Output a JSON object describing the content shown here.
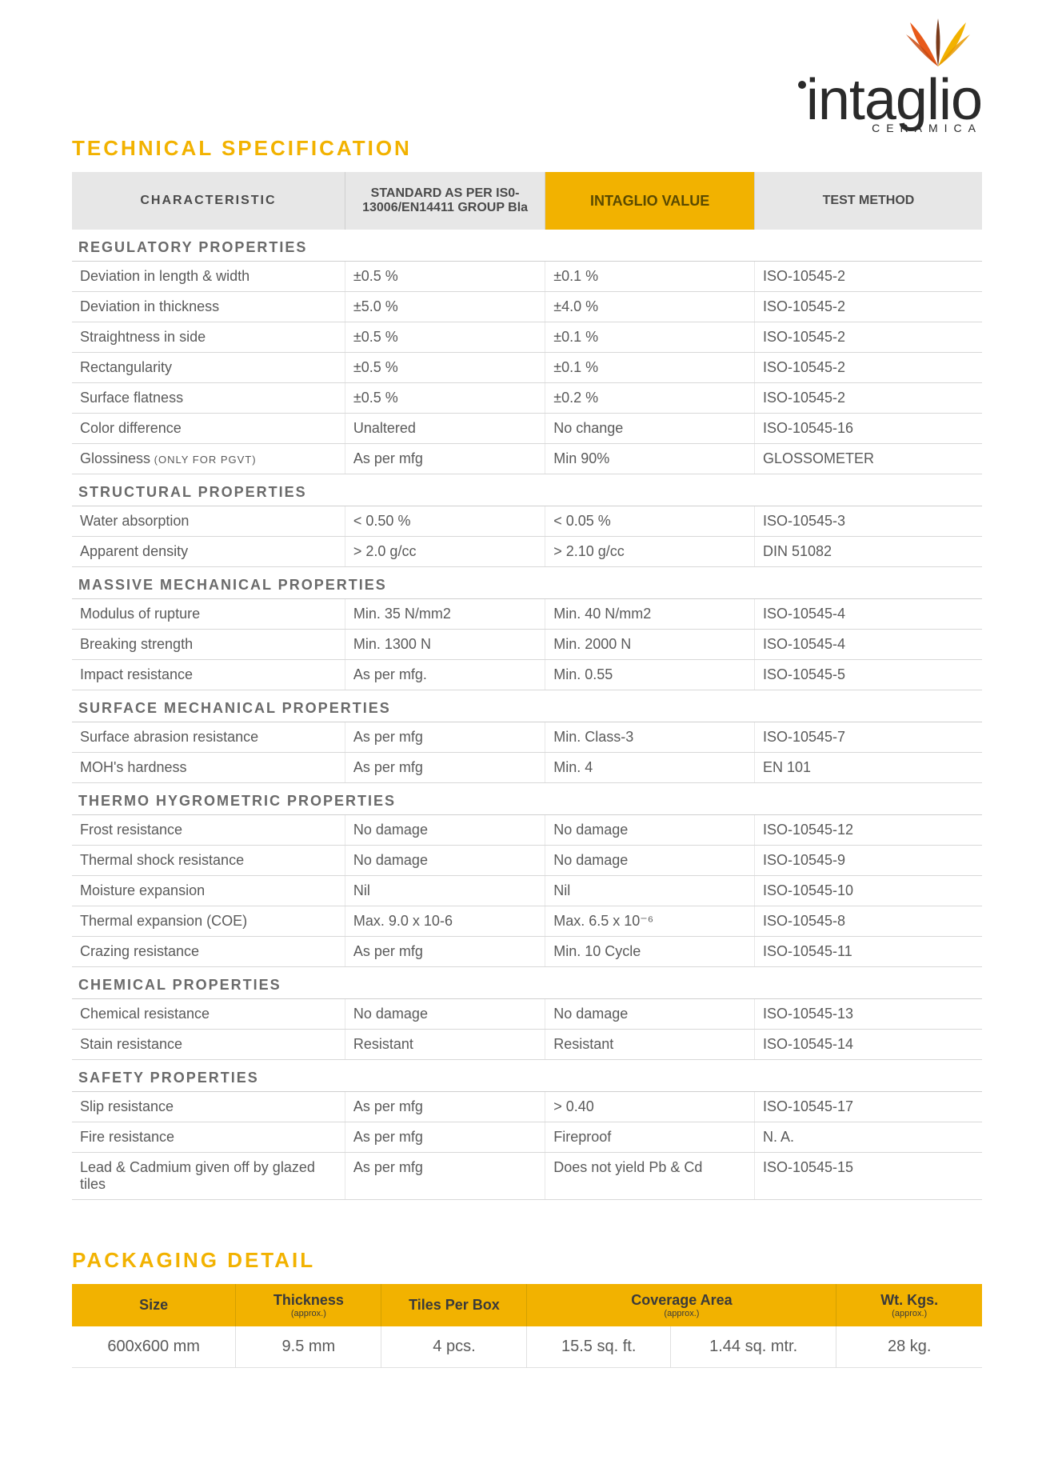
{
  "brand": {
    "name": "intaglio",
    "tagline": "CERAMICA",
    "icon_color_primary": "#e85a1a",
    "icon_color_secondary": "#f2b200",
    "text_color": "#2a2a2a"
  },
  "titles": {
    "technical": "TECHNICAL SPECIFICATION",
    "packaging": "PACKAGING DETAIL",
    "title_color": "#f2b200"
  },
  "tech_table": {
    "header_bg": "#e7e7e7",
    "highlight_bg": "#f2b200",
    "columns": [
      "CHARACTERISTIC",
      "STANDARD AS PER IS0-13006/EN14411 GROUP Bla",
      "INTAGLIO VALUE",
      "TEST METHOD"
    ],
    "groups": [
      {
        "name": "REGULATORY PROPERTIES",
        "rows": [
          {
            "char": "Deviation in length & width",
            "std": "±0.5 %",
            "val": "±0.1 %",
            "test": "ISO-10545-2"
          },
          {
            "char": "Deviation in thickness",
            "std": "±5.0 %",
            "val": "±4.0 %",
            "test": "ISO-10545-2"
          },
          {
            "char": "Straightness in side",
            "std": "±0.5 %",
            "val": "±0.1 %",
            "test": "ISO-10545-2"
          },
          {
            "char": "Rectangularity",
            "std": "±0.5 %",
            "val": "±0.1 %",
            "test": "ISO-10545-2"
          },
          {
            "char": "Surface flatness",
            "std": "±0.5 %",
            "val": "±0.2 %",
            "test": "ISO-10545-2"
          },
          {
            "char": "Color difference",
            "std": "Unaltered",
            "val": "No change",
            "test": "ISO-10545-16"
          },
          {
            "char": "Glossiness",
            "char_note": "(ONLY FOR PGVT)",
            "std": "As per mfg",
            "val": "Min 90%",
            "test": "GLOSSOMETER"
          }
        ]
      },
      {
        "name": "STRUCTURAL PROPERTIES",
        "rows": [
          {
            "char": "Water absorption",
            "std": "< 0.50 %",
            "val": "< 0.05 %",
            "test": "ISO-10545-3"
          },
          {
            "char": "Apparent density",
            "std": "> 2.0 g/cc",
            "val": "> 2.10 g/cc",
            "test": "DIN 51082"
          }
        ]
      },
      {
        "name": "MASSIVE MECHANICAL PROPERTIES",
        "rows": [
          {
            "char": "Modulus of rupture",
            "std": "Min. 35 N/mm2",
            "val": "Min. 40 N/mm2",
            "test": "ISO-10545-4"
          },
          {
            "char": "Breaking strength",
            "std": "Min. 1300 N",
            "val": "Min. 2000 N",
            "test": "ISO-10545-4"
          },
          {
            "char": "Impact resistance",
            "std": "As per mfg.",
            "val": "Min. 0.55",
            "test": "ISO-10545-5"
          }
        ]
      },
      {
        "name": "SURFACE MECHANICAL PROPERTIES",
        "rows": [
          {
            "char": "Surface abrasion resistance",
            "std": "As per mfg",
            "val": "Min. Class-3",
            "test": "ISO-10545-7"
          },
          {
            "char": "MOH's hardness",
            "std": "As per mfg",
            "val": "Min. 4",
            "test": "EN 101"
          }
        ]
      },
      {
        "name": "THERMO HYGROMETRIC PROPERTIES",
        "rows": [
          {
            "char": "Frost resistance",
            "std": "No damage",
            "val": "No damage",
            "test": "ISO-10545-12"
          },
          {
            "char": "Thermal shock resistance",
            "std": "No damage",
            "val": "No damage",
            "test": "ISO-10545-9"
          },
          {
            "char": "Moisture expansion",
            "std": "Nil",
            "val": "Nil",
            "test": "ISO-10545-10"
          },
          {
            "char": "Thermal expansion (COE)",
            "std": "Max. 9.0 x 10-6",
            "val": "Max. 6.5 x 10⁻⁶",
            "test": "ISO-10545-8"
          },
          {
            "char": "Crazing resistance",
            "std": "As per mfg",
            "val": "Min. 10 Cycle",
            "test": "ISO-10545-11"
          }
        ]
      },
      {
        "name": "CHEMICAL PROPERTIES",
        "rows": [
          {
            "char": "Chemical resistance",
            "std": "No damage",
            "val": "No damage",
            "test": "ISO-10545-13"
          },
          {
            "char": "Stain resistance",
            "std": "Resistant",
            "val": "Resistant",
            "test": "ISO-10545-14"
          }
        ]
      },
      {
        "name": "SAFETY PROPERTIES",
        "rows": [
          {
            "char": "Slip resistance",
            "std": "As per mfg",
            "val": "> 0.40",
            "test": "ISO-10545-17"
          },
          {
            "char": "Fire resistance",
            "std": "As per mfg",
            "val": "Fireproof",
            "test": "N. A."
          },
          {
            "char": "Lead & Cadmium given off by glazed tiles",
            "std": "As per mfg",
            "val": "Does not yield Pb & Cd",
            "test": "ISO-10545-15"
          }
        ]
      }
    ]
  },
  "pack_table": {
    "header_bg": "#f2b200",
    "approx_label": "(approx.)",
    "columns": [
      "Size",
      "Thickness",
      "Tiles Per Box",
      "Coverage Area",
      "Wt. Kgs."
    ],
    "col_has_approx": [
      false,
      true,
      false,
      true,
      true
    ],
    "rows": [
      {
        "size": "600x600 mm",
        "thickness": "9.5 mm",
        "tiles": "4 pcs.",
        "cov_ft": "15.5 sq. ft.",
        "cov_m": "1.44 sq. mtr.",
        "wt": "28 kg."
      }
    ]
  }
}
